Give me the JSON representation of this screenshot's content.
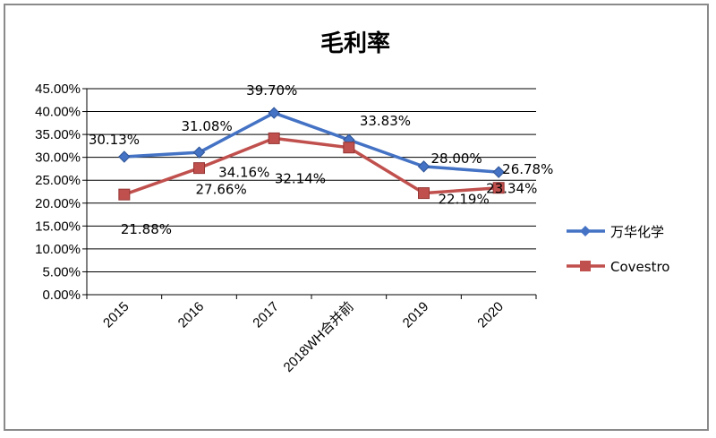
{
  "chart_data": {
    "type": "line",
    "title": "毛利率",
    "categories": [
      "2015",
      "2016",
      "2017",
      "2018WH合并前",
      "2019",
      "2020"
    ],
    "y_ticks": [
      "0.00%",
      "5.00%",
      "10.00%",
      "15.00%",
      "20.00%",
      "25.00%",
      "30.00%",
      "35.00%",
      "40.00%",
      "45.00%"
    ],
    "ylim": [
      0,
      45
    ],
    "grid": "horizontal",
    "legend_position": "right",
    "series": [
      {
        "name": "万华化学",
        "color": "#4472C4",
        "marker": "diamond",
        "values": [
          30.13,
          31.08,
          39.7,
          33.83,
          28.0,
          26.78
        ],
        "labels": [
          "30.13%",
          "31.08%",
          "39.70%",
          "33.83%",
          "28.00%",
          "26.78%"
        ]
      },
      {
        "name": "Covestro",
        "color": "#C0504D",
        "marker": "square",
        "values": [
          21.88,
          27.66,
          34.16,
          32.14,
          22.19,
          23.34
        ],
        "labels": [
          "21.88%",
          "27.66%",
          "34.16%",
          "32.14%",
          "22.19%",
          "23.34%"
        ]
      }
    ]
  }
}
